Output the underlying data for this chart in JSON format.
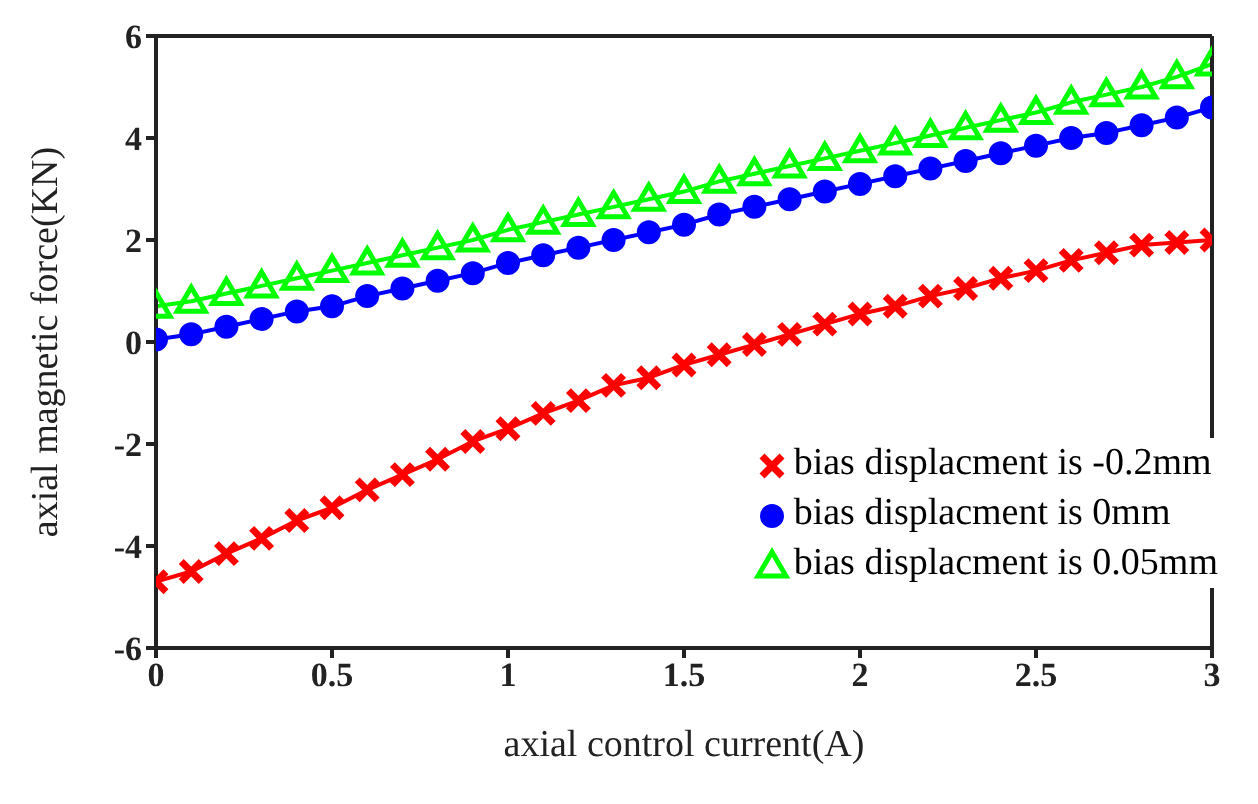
{
  "chart_data": {
    "type": "line",
    "xlabel": "axial control current(A)",
    "ylabel": "axial magnetic force(KN)",
    "x": [
      0,
      0.1,
      0.2,
      0.3,
      0.4,
      0.5,
      0.6,
      0.7,
      0.8,
      0.9,
      1,
      1.1,
      1.2,
      1.3,
      1.4,
      1.5,
      1.6,
      1.7,
      1.8,
      1.9,
      2,
      2.1,
      2.2,
      2.3,
      2.4,
      2.5,
      2.6,
      2.7,
      2.8,
      2.9,
      3
    ],
    "xlim": [
      0,
      3
    ],
    "xticks": [
      0,
      0.5,
      1,
      1.5,
      2,
      2.5,
      3
    ],
    "ylim": [
      -6,
      6
    ],
    "yticks": [
      -6,
      -4,
      -2,
      0,
      2,
      4,
      6
    ],
    "grid": false,
    "legend": "bottom right",
    "line_style": "solid",
    "series": [
      {
        "name": "bias displacment is -0.2mm",
        "color": "#ff0000",
        "marker": "cross",
        "values": [
          -4.7,
          -4.5,
          -4.15,
          -3.85,
          -3.5,
          -3.25,
          -2.9,
          -2.6,
          -2.3,
          -1.95,
          -1.7,
          -1.4,
          -1.15,
          -0.85,
          -0.7,
          -0.45,
          -0.25,
          -0.05,
          0.15,
          0.35,
          0.55,
          0.7,
          0.9,
          1.05,
          1.25,
          1.4,
          1.6,
          1.75,
          1.9,
          1.95,
          2.0
        ]
      },
      {
        "name": "bias displacment is 0mm",
        "color": "#0000ff",
        "marker": "circle",
        "values": [
          0.05,
          0.15,
          0.3,
          0.45,
          0.6,
          0.7,
          0.9,
          1.05,
          1.2,
          1.35,
          1.55,
          1.7,
          1.85,
          2.0,
          2.15,
          2.3,
          2.5,
          2.65,
          2.8,
          2.95,
          3.1,
          3.25,
          3.4,
          3.55,
          3.7,
          3.85,
          4.0,
          4.1,
          4.25,
          4.4,
          4.6
        ]
      },
      {
        "name": "bias displacment is 0.05mm",
        "color": "#00ff00",
        "marker": "triangle",
        "values": [
          0.7,
          0.8,
          0.95,
          1.1,
          1.25,
          1.4,
          1.55,
          1.7,
          1.85,
          2.0,
          2.2,
          2.35,
          2.5,
          2.65,
          2.8,
          2.95,
          3.15,
          3.3,
          3.45,
          3.6,
          3.75,
          3.9,
          4.05,
          4.2,
          4.35,
          4.5,
          4.7,
          4.85,
          5.0,
          5.2,
          5.45
        ]
      }
    ]
  }
}
